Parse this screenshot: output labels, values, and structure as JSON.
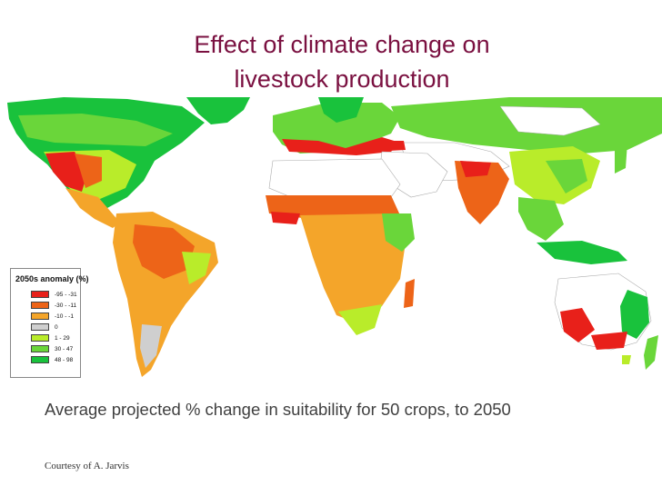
{
  "title": {
    "line1": "Effect of climate change on",
    "line2": "livestock production"
  },
  "legend": {
    "title": "2050s anomaly (%)",
    "items": [
      {
        "label": "-95 - -31",
        "color": "#e8201a"
      },
      {
        "label": "-30 - -11",
        "color": "#ed6418"
      },
      {
        "label": "-10 - -1",
        "color": "#f4a52a"
      },
      {
        "label": "0",
        "color": "#cfcfcf"
      },
      {
        "label": "1 - 29",
        "color": "#b9ec2a"
      },
      {
        "label": "30 - 47",
        "color": "#6ad63a"
      },
      {
        "label": "48 - 98",
        "color": "#19c23c"
      }
    ]
  },
  "caption": "Average projected % change in suitability for 50 crops, to 2050",
  "credit": "Courtesy of A. Jarvis"
}
